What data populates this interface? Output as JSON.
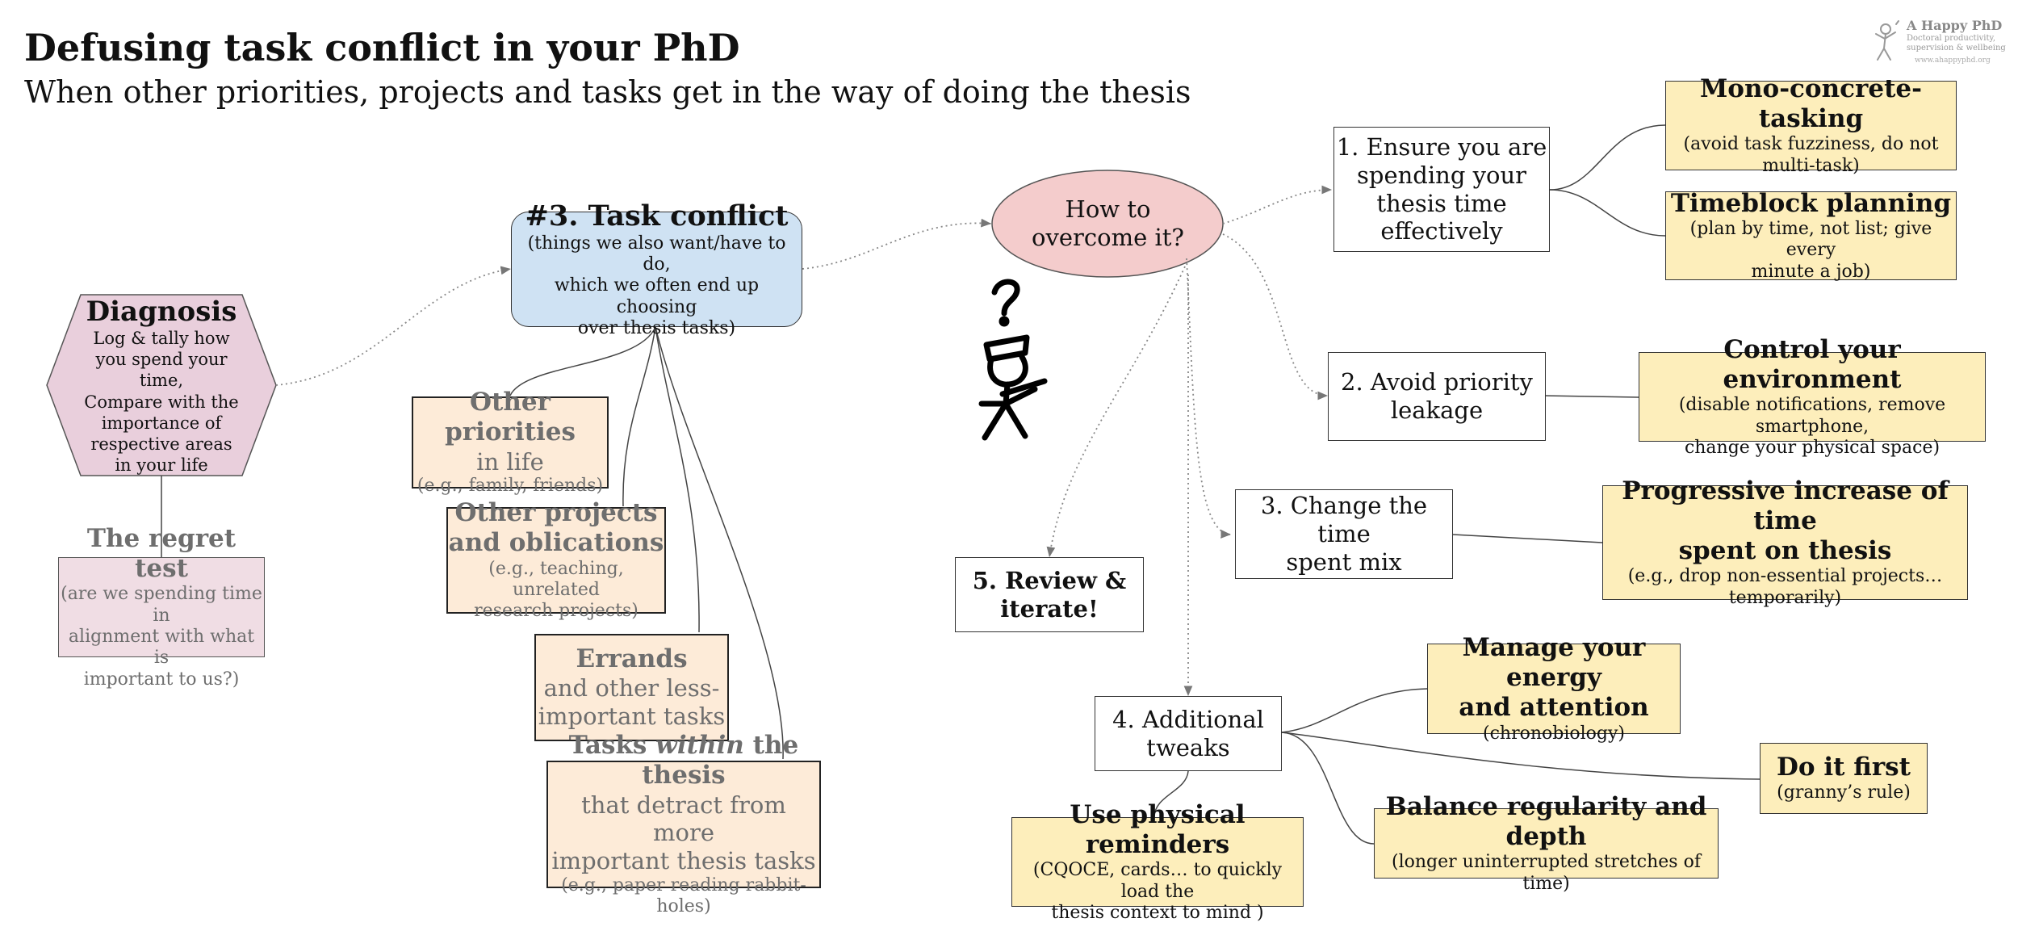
{
  "header": {
    "title": "Defusing task conflict in your PhD",
    "subtitle": "When other priorities, projects and tasks get in the way of doing the thesis"
  },
  "logo": {
    "name": "A Happy PhD",
    "tagline": [
      "Doctoral productivity,",
      "supervision & wellbeing"
    ],
    "url": "www.ahappyphd.org"
  },
  "diagnosis": {
    "title": "Diagnosis",
    "lines": [
      "Log & tally how",
      "you spend your",
      "time,",
      "Compare with the",
      "importance of",
      "respective areas",
      "in your life"
    ]
  },
  "regret_test": {
    "title": "The regret test",
    "lines": [
      "(are we spending time in",
      "alignment with what is",
      "important to us?)"
    ]
  },
  "task_conflict": {
    "title": "#3. Task conflict",
    "lines": [
      "(things we also want/have to do,",
      "which we often end up choosing",
      "over thesis tasks)"
    ]
  },
  "conflicts": {
    "other_priorities": {
      "bold": "Other priorities",
      "plain": "in life",
      "example": "(e.g., family, friends)"
    },
    "other_projects": {
      "bold_lines": [
        "Other projects",
        "and oblications"
      ],
      "example_lines": [
        "(e.g., teaching, unrelated",
        "research projects)"
      ]
    },
    "errands": {
      "bold": "Errands",
      "plain_lines": [
        "and other less-",
        "important tasks"
      ]
    },
    "within_thesis": {
      "bold_pre": "Tasks ",
      "italic": "within",
      "bold_post": " the thesis",
      "plain_lines": [
        "that detract from more",
        "important thesis tasks"
      ],
      "example": "(e.g., paper reading rabbit-holes)"
    }
  },
  "overcome": {
    "lines": [
      "How to",
      "overcome it?"
    ]
  },
  "strategies": {
    "s1": {
      "lines": [
        "1. Ensure you are",
        "spending your",
        "thesis time",
        "effectively"
      ]
    },
    "s2": {
      "lines": [
        "2. Avoid priority",
        "leakage"
      ]
    },
    "s3": {
      "lines": [
        "3. Change the time",
        "spent mix"
      ]
    },
    "s4": {
      "lines": [
        "4. Additional",
        "tweaks"
      ]
    },
    "s5": {
      "lines": [
        "5. Review &",
        "iterate!"
      ]
    }
  },
  "tips": {
    "mono": {
      "title": "Mono-concrete-tasking",
      "lines": [
        "(avoid task fuzziness, do not",
        "multi-task)"
      ]
    },
    "timeblock": {
      "title": "Timeblock planning",
      "lines": [
        "(plan by time, not list; give every",
        "minute a job)"
      ]
    },
    "environment": {
      "title": "Control your environment",
      "lines": [
        "(disable notifications, remove smartphone,",
        "change your physical space)"
      ]
    },
    "progressive": {
      "title_lines": [
        "Progressive increase of time",
        "spent on thesis"
      ],
      "lines": [
        "(e.g., drop non-essential projects…",
        "temporarily)"
      ]
    },
    "energy": {
      "title_lines": [
        "Manage your energy",
        "and attention"
      ],
      "lines": [
        "(chronobiology)"
      ]
    },
    "first": {
      "title": "Do it first",
      "lines": [
        "(granny’s rule)"
      ]
    },
    "balance": {
      "title": "Balance regularity and depth",
      "lines": [
        "(longer uninterrupted stretches of time)"
      ]
    },
    "reminders": {
      "title": "Use physical reminders",
      "lines": [
        "(CQOCE, cards… to quickly load the",
        "thesis context to mind )"
      ]
    }
  },
  "colors": {
    "pink_fill": "#f0dde4",
    "hexagon_fill": "#e9cfdc",
    "blue_fill": "#cfe2f3",
    "ellipse_fill": "#f4cccc",
    "peach_fill": "#fdebd8",
    "yellow_fill": "#fdeebb",
    "grey_text": "#6e6e6e"
  }
}
